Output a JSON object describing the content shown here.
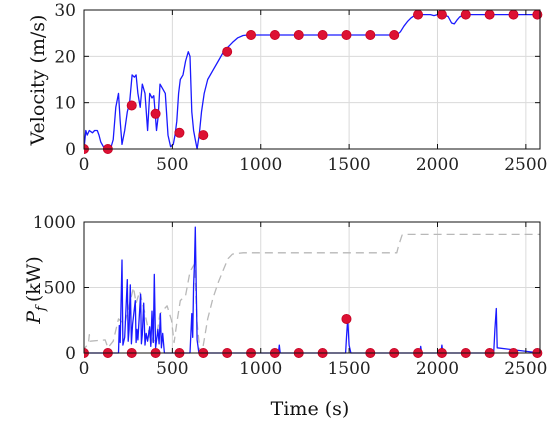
{
  "chart_data": [
    {
      "type": "line",
      "title": "",
      "xlabel": "",
      "ylabel": "Velocity (m/s)",
      "xlim": [
        0,
        2580
      ],
      "ylim": [
        0,
        30
      ],
      "xticks": [
        0,
        500,
        1000,
        1500,
        2000,
        2500
      ],
      "xtick_labels": [
        "0",
        "500",
        "1000",
        "1500",
        "2000",
        "2500"
      ],
      "yticks": [
        0,
        10,
        20,
        30
      ],
      "ytick_labels": [
        "0",
        "10",
        "20",
        "30"
      ],
      "grid": true,
      "colors": {
        "line": "#1a1aff",
        "marker": "#dd1133"
      },
      "series": [
        {
          "style": "solid",
          "x": [
            0,
            10,
            18,
            30,
            48,
            60,
            75,
            85,
            95,
            110,
            130,
            150,
            165,
            180,
            195,
            205,
            215,
            230,
            245,
            258,
            272,
            285,
            295,
            305,
            318,
            330,
            345,
            360,
            372,
            385,
            395,
            402,
            410,
            420,
            430,
            445,
            460,
            475,
            490,
            505,
            515,
            525,
            535,
            545,
            560,
            575,
            590,
            600,
            610,
            620,
            630,
            640,
            652,
            665,
            680,
            700,
            730,
            760,
            790,
            815,
            840,
            870,
            900,
            925,
            940,
            1000,
            1200,
            1400,
            1600,
            1770,
            1790,
            1810,
            1830,
            1850,
            1870,
            1890,
            1960,
            1980,
            2000,
            2030,
            2060,
            2080,
            2095,
            2110,
            2125,
            2150,
            2200,
            2300,
            2400,
            2450,
            2580
          ],
          "y": [
            0,
            4,
            3,
            4,
            3.5,
            4,
            4,
            3,
            1.5,
            0.5,
            0,
            0,
            2,
            9,
            12,
            6,
            1,
            4,
            8,
            10,
            16,
            15.5,
            16,
            12,
            9,
            14,
            12,
            4,
            12,
            11,
            11.5,
            8,
            4,
            7,
            14,
            13,
            12,
            3,
            0.5,
            1,
            3,
            6,
            12,
            15,
            16,
            19,
            21,
            20,
            8,
            4,
            2,
            0,
            3,
            8,
            12,
            15,
            17,
            19,
            21,
            22,
            23,
            24,
            24.5,
            24.6,
            24.6,
            24.6,
            24.6,
            24.6,
            24.6,
            24.6,
            25.3,
            26.5,
            27.5,
            28.3,
            28.8,
            29,
            29,
            28.8,
            29,
            29,
            28.6,
            27.2,
            27,
            27.8,
            28.5,
            29,
            29,
            29,
            29,
            29,
            29
          ]
        },
        {
          "style": "markers",
          "x": [
            0,
            135,
            270,
            405,
            540,
            675,
            810,
            945,
            1080,
            1215,
            1350,
            1485,
            1620,
            1755,
            1890,
            2025,
            2160,
            2295,
            2430,
            2565
          ],
          "y": [
            0,
            0,
            9.4,
            7.6,
            3.5,
            3.0,
            21.0,
            24.6,
            24.6,
            24.6,
            24.6,
            24.6,
            24.6,
            24.6,
            29.0,
            29.0,
            29.0,
            29.0,
            29.0,
            29.0
          ]
        }
      ]
    },
    {
      "type": "line",
      "title": "",
      "xlabel": "Time (s)",
      "ylabel_symbol": "P",
      "ylabel_sub": "f",
      "ylabel_unit": "(kW)",
      "xlim": [
        0,
        2580
      ],
      "ylim": [
        0,
        1000
      ],
      "xticks": [
        0,
        500,
        1000,
        1500,
        2000,
        2500
      ],
      "xtick_labels": [
        "0",
        "500",
        "1000",
        "1500",
        "2000",
        "2500"
      ],
      "yticks": [
        0,
        500,
        1000
      ],
      "ytick_labels": [
        "0",
        "500",
        "1000"
      ],
      "grid": true,
      "colors": {
        "line": "#1a1aff",
        "dashed": "#b8b8b8",
        "marker": "#dd1133"
      },
      "series": [
        {
          "style": "solid",
          "x": [
            0,
            195,
            200,
            205,
            215,
            220,
            230,
            245,
            250,
            255,
            262,
            268,
            275,
            290,
            295,
            300,
            305,
            320,
            325,
            330,
            338,
            345,
            352,
            360,
            372,
            378,
            385,
            392,
            398,
            405,
            418,
            425,
            432,
            438,
            445,
            455,
            520,
            600,
            610,
            615,
            620,
            625,
            630,
            635,
            640,
            650,
            1100,
            1105,
            1110,
            1480,
            1485,
            1492,
            1500,
            1510,
            1900,
            1905,
            1910,
            2020,
            2025,
            2030,
            2318,
            2325,
            2333,
            2338,
            2580
          ],
          "y": [
            0,
            0,
            210,
            80,
            710,
            60,
            120,
            560,
            90,
            180,
            520,
            70,
            220,
            400,
            80,
            180,
            100,
            450,
            70,
            140,
            380,
            60,
            150,
            90,
            200,
            50,
            320,
            80,
            600,
            40,
            180,
            70,
            300,
            40,
            150,
            0,
            0,
            0,
            300,
            120,
            520,
            680,
            960,
            520,
            100,
            0,
            0,
            60,
            0,
            0,
            120,
            260,
            60,
            0,
            0,
            50,
            0,
            0,
            60,
            0,
            0,
            180,
            340,
            40,
            0
          ]
        },
        {
          "style": "dashed",
          "x": [
            0,
            5,
            25,
            30,
            35,
            120,
            135,
            165,
            195,
            230,
            280,
            295,
            315,
            345,
            380,
            392,
            405,
            430,
            470,
            495,
            510,
            525,
            545,
            575,
            600,
            625,
            640,
            655,
            665,
            675,
            700,
            730,
            760,
            790,
            815,
            840,
            870,
            900,
            940,
            1770,
            1780,
            1800,
            1820,
            2580
          ],
          "y": [
            0,
            40,
            70,
            140,
            90,
            100,
            40,
            90,
            260,
            220,
            500,
            380,
            470,
            300,
            70,
            130,
            80,
            300,
            360,
            250,
            80,
            230,
            400,
            440,
            620,
            680,
            230,
            20,
            0,
            60,
            260,
            420,
            540,
            640,
            720,
            755,
            760,
            765,
            765,
            765,
            820,
            900,
            905,
            905
          ]
        },
        {
          "style": "markers",
          "x": [
            0,
            135,
            270,
            405,
            540,
            675,
            810,
            945,
            1080,
            1215,
            1350,
            1485,
            1620,
            1755,
            1890,
            2025,
            2160,
            2295,
            2430,
            2565
          ],
          "y": [
            0,
            0,
            0,
            0,
            0,
            0,
            0,
            0,
            0,
            0,
            0,
            260,
            0,
            0,
            0,
            0,
            0,
            0,
            0,
            0
          ]
        }
      ]
    }
  ]
}
